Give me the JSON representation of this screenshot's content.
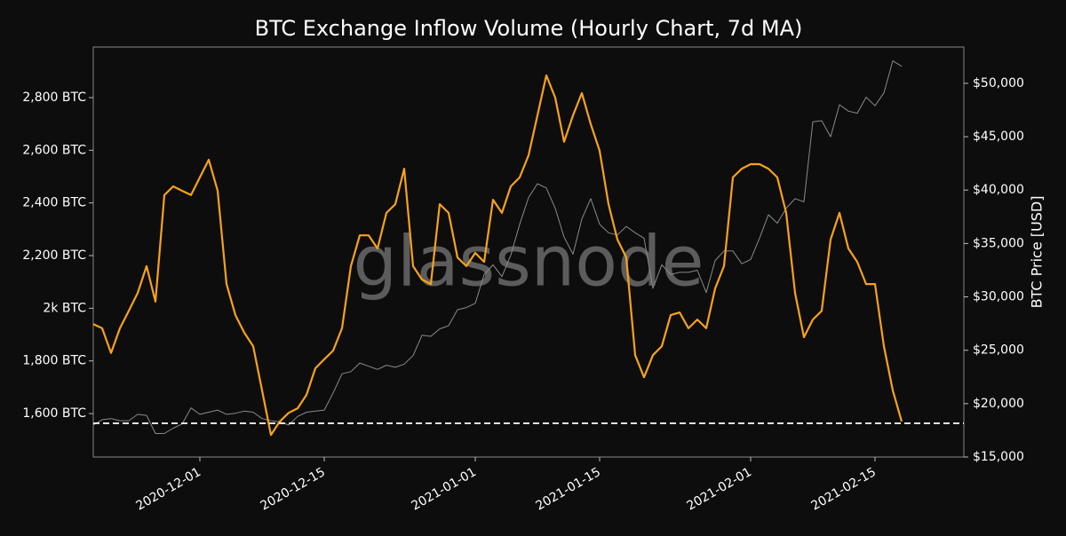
{
  "chart_data": {
    "type": "line",
    "title": "BTC Exchange Inflow Volume (Hourly Chart, 7d MA)",
    "y2label": "BTC Price [USD]",
    "watermark": "glassnode",
    "x": [
      "2020-11-19",
      "2020-11-20",
      "2020-11-21",
      "2020-11-22",
      "2020-11-23",
      "2020-11-24",
      "2020-11-25",
      "2020-11-26",
      "2020-11-27",
      "2020-11-28",
      "2020-11-29",
      "2020-11-30",
      "2020-12-01",
      "2020-12-02",
      "2020-12-03",
      "2020-12-04",
      "2020-12-05",
      "2020-12-06",
      "2020-12-07",
      "2020-12-08",
      "2020-12-09",
      "2020-12-10",
      "2020-12-11",
      "2020-12-12",
      "2020-12-13",
      "2020-12-14",
      "2020-12-15",
      "2020-12-16",
      "2020-12-17",
      "2020-12-18",
      "2020-12-19",
      "2020-12-20",
      "2020-12-21",
      "2020-12-22",
      "2020-12-23",
      "2020-12-24",
      "2020-12-25",
      "2020-12-26",
      "2020-12-27",
      "2020-12-28",
      "2020-12-29",
      "2020-12-30",
      "2020-12-31",
      "2021-01-01",
      "2021-01-02",
      "2021-01-03",
      "2021-01-04",
      "2021-01-05",
      "2021-01-06",
      "2021-01-07",
      "2021-01-08",
      "2021-01-09",
      "2021-01-10",
      "2021-01-11",
      "2021-01-12",
      "2021-01-13",
      "2021-01-14",
      "2021-01-15",
      "2021-01-16",
      "2021-01-17",
      "2021-01-18",
      "2021-01-19",
      "2021-01-20",
      "2021-01-21",
      "2021-01-22",
      "2021-01-23",
      "2021-01-24",
      "2021-01-25",
      "2021-01-26",
      "2021-01-27",
      "2021-01-28",
      "2021-01-29",
      "2021-01-30",
      "2021-01-31",
      "2021-02-01",
      "2021-02-02",
      "2021-02-03",
      "2021-02-04",
      "2021-02-05",
      "2021-02-06",
      "2021-02-07",
      "2021-02-08",
      "2021-02-09",
      "2021-02-10",
      "2021-02-11",
      "2021-02-12",
      "2021-02-13",
      "2021-02-14",
      "2021-02-15",
      "2021-02-16",
      "2021-02-17",
      "2021-02-18"
    ],
    "xlim": [
      "2020-11-19",
      "2021-02-25"
    ],
    "xticks": [
      "2020-12-01",
      "2020-12-15",
      "2021-01-01",
      "2021-01-15",
      "2021-02-01",
      "2021-02-15"
    ],
    "ylim": [
      1435,
      2992
    ],
    "yticks": [
      {
        "value": 1600,
        "label": "1,600 BTC"
      },
      {
        "value": 1800,
        "label": "1,800 BTC"
      },
      {
        "value": 2000,
        "label": "2k BTC"
      },
      {
        "value": 2200,
        "label": "2,200 BTC"
      },
      {
        "value": 2400,
        "label": "2,400 BTC"
      },
      {
        "value": 2600,
        "label": "2,600 BTC"
      },
      {
        "value": 2800,
        "label": "2,800 BTC"
      }
    ],
    "y2lim": [
      15000,
      53400
    ],
    "y2ticks": [
      {
        "value": 15000,
        "label": "$15,000"
      },
      {
        "value": 20000,
        "label": "$20,000"
      },
      {
        "value": 25000,
        "label": "$25,000"
      },
      {
        "value": 30000,
        "label": "$30,000"
      },
      {
        "value": 35000,
        "label": "$35,000"
      },
      {
        "value": 40000,
        "label": "$40,000"
      },
      {
        "value": 45000,
        "label": "$45,000"
      },
      {
        "value": 50000,
        "label": "$50,000"
      }
    ],
    "hline": 1563,
    "series": [
      {
        "color": "#f7a21b",
        "values": [
          1940,
          1924,
          1830,
          1924,
          1990,
          2058,
          2160,
          2025,
          2430,
          2463,
          2446,
          2430,
          2497,
          2564,
          2446,
          2092,
          1974,
          1907,
          1856,
          1688,
          1519,
          1570,
          1603,
          1620,
          1671,
          1772,
          1806,
          1839,
          1924,
          2160,
          2277,
          2277,
          2227,
          2362,
          2395,
          2530,
          2160,
          2109,
          2092,
          2395,
          2362,
          2193,
          2160,
          2210,
          2176,
          2412,
          2362,
          2463,
          2497,
          2581,
          2732,
          2884,
          2800,
          2632,
          2732,
          2817,
          2699,
          2598,
          2395,
          2261,
          2193,
          1822,
          1738,
          1822,
          1856,
          1974,
          1984,
          1924,
          1957,
          1924,
          2075,
          2160,
          2497,
          2530,
          2547,
          2547,
          2530,
          2497,
          2362,
          2058,
          1890,
          1957,
          1990,
          2261,
          2362,
          2227,
          2176,
          2092,
          2092,
          1856,
          1688,
          1570
        ]
      },
      {
        "color": "#8a8a8a",
        "axis": "y2",
        "values": [
          18000,
          18500,
          18600,
          18400,
          18400,
          19000,
          18900,
          17200,
          17200,
          17700,
          18100,
          19600,
          19000,
          19200,
          19400,
          19000,
          19100,
          19300,
          19200,
          18600,
          18400,
          18300,
          18000,
          18800,
          19200,
          19300,
          19400,
          21000,
          22800,
          23000,
          23800,
          23500,
          23200,
          23600,
          23400,
          23700,
          24500,
          26400,
          26300,
          27000,
          27300,
          28800,
          29000,
          29400,
          32100,
          33000,
          31900,
          33900,
          36800,
          39300,
          40600,
          40200,
          38300,
          35600,
          34000,
          37300,
          39200,
          36800,
          36000,
          35800,
          36600,
          36000,
          35500,
          30800,
          33000,
          32100,
          32300,
          32300,
          32500,
          30400,
          33400,
          34300,
          34300,
          33100,
          33500,
          35500,
          37700,
          36900,
          38300,
          39200,
          38900,
          46400,
          46500,
          45000,
          48000,
          47400,
          47200,
          48700,
          47900,
          49100,
          52100,
          51600
        ]
      }
    ]
  }
}
